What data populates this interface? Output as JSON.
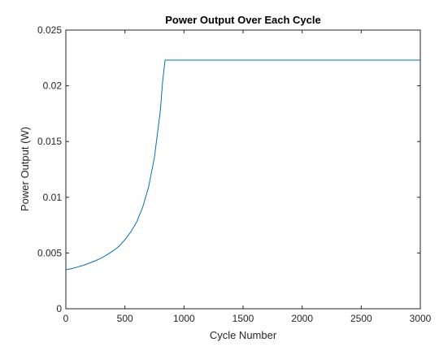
{
  "chart_data": {
    "type": "line",
    "title": "Power Output Over Each Cycle",
    "xlabel": "Cycle Number",
    "ylabel": "Power Output (W)",
    "xlim": [
      0,
      3000
    ],
    "ylim": [
      0,
      0.025
    ],
    "xticks": [
      0,
      500,
      1000,
      1500,
      2000,
      2500,
      3000
    ],
    "xtick_labels": [
      "0",
      "500",
      "1000",
      "1500",
      "2000",
      "2500",
      "3000"
    ],
    "yticks": [
      0,
      0.005,
      0.01,
      0.015,
      0.02,
      0.025
    ],
    "ytick_labels": [
      "0",
      "0.005",
      "0.01",
      "0.015",
      "0.02",
      "0.025"
    ],
    "grid": false,
    "legend": "none",
    "line_color": "#0072BD",
    "series": [
      {
        "x": [
          0,
          50,
          100,
          150,
          200,
          250,
          300,
          350,
          400,
          450,
          500,
          550,
          600,
          650,
          700,
          750,
          800,
          820,
          840,
          1000,
          1500,
          2000,
          2500,
          3000
        ],
        "y": [
          0.0035,
          0.0036,
          0.00375,
          0.0039,
          0.0041,
          0.0043,
          0.00455,
          0.00485,
          0.0052,
          0.0056,
          0.0062,
          0.0069,
          0.0078,
          0.0091,
          0.0109,
          0.0136,
          0.0178,
          0.0205,
          0.0223,
          0.0223,
          0.0223,
          0.0223,
          0.0223,
          0.0223
        ]
      }
    ]
  }
}
